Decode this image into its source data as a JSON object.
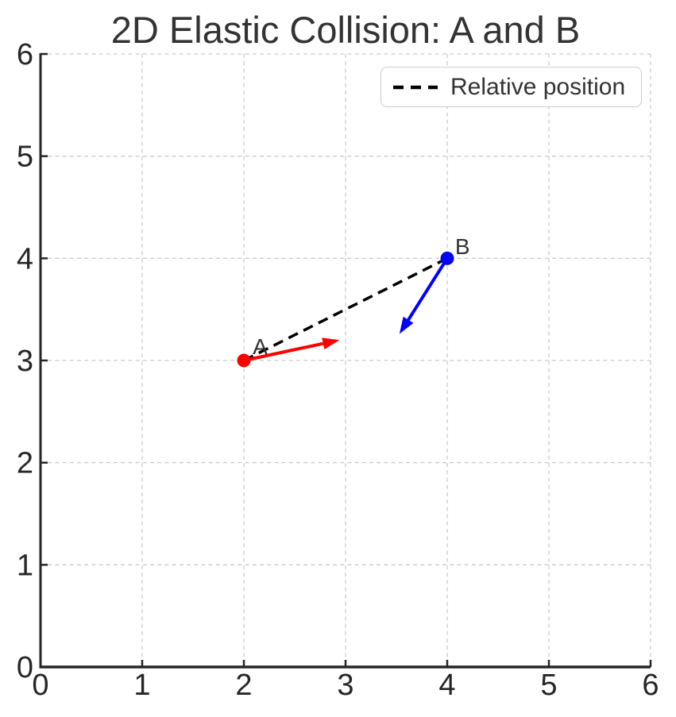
{
  "title": "2D Elastic Collision: A and B",
  "legend": {
    "label": "Relative position"
  },
  "colors": {
    "point_a": "#ff0000",
    "point_b": "#0000ff",
    "relative_line": "#000000",
    "grid": "#cccccc",
    "spine": "#262626",
    "tick_label": "#262626",
    "title_text": "#333333",
    "point_label": "#333333",
    "legend_border": "#cccccc",
    "legend_text": "#333333",
    "background": "#ffffff"
  },
  "chart_data": {
    "type": "scatter",
    "title": "2D Elastic Collision: A and B",
    "xlabel": "",
    "ylabel": "",
    "xlim": [
      0,
      6
    ],
    "ylim": [
      0,
      6
    ],
    "xticks": [
      0,
      1,
      2,
      3,
      4,
      5,
      6
    ],
    "yticks": [
      0,
      1,
      2,
      3,
      4,
      5,
      6
    ],
    "grid": true,
    "grid_style": "dashed",
    "legend": {
      "position": "upper right",
      "entries": [
        {
          "label": "Relative position",
          "style": "dashed",
          "color": "#000000"
        }
      ]
    },
    "points": [
      {
        "name": "A",
        "x": 2,
        "y": 3,
        "color": "#ff0000",
        "label_x": 2.16,
        "label_y": 3.14
      },
      {
        "name": "B",
        "x": 4,
        "y": 4,
        "color": "#0000ff",
        "label_x": 4.15,
        "label_y": 4.12
      }
    ],
    "vectors": [
      {
        "name": "velocity-A",
        "x0": 2,
        "y0": 3,
        "x1": 2.94,
        "y1": 3.2,
        "color": "#ff0000"
      },
      {
        "name": "velocity-B",
        "x0": 4,
        "y0": 4,
        "x1": 3.53,
        "y1": 3.26,
        "color": "#0000ff"
      }
    ],
    "relative_position": {
      "x0": 2,
      "y0": 3,
      "x1": 4,
      "y1": 4,
      "style": "dashed",
      "color": "#000000"
    }
  }
}
